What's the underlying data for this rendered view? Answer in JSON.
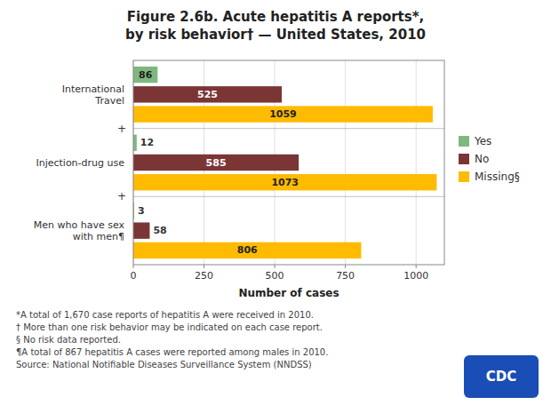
{
  "chart_data": {
    "type": "bar",
    "orientation": "horizontal",
    "title": "Figure 2.6b.  Acute hepatitis A reports*,",
    "subtitle": "by risk behavior† — United States, 2010",
    "categories": [
      "International\nTravel",
      "Injection-drug use",
      "Men who have sex\nwith men¶"
    ],
    "series": [
      {
        "name": "Yes",
        "color": "#7fb87f",
        "values": [
          86,
          12,
          3
        ]
      },
      {
        "name": "No",
        "color": "#7b3535",
        "values": [
          525,
          585,
          58
        ]
      },
      {
        "name": "Missing§",
        "color": "#ffbb00",
        "values": [
          1059,
          1073,
          806
        ]
      }
    ],
    "xlabel": "Number of cases",
    "xlim": [
      0,
      1100
    ],
    "xticks": [
      0,
      250,
      500,
      750,
      1000
    ],
    "grid": true,
    "legend": "right",
    "data_labels": true,
    "separator_label": "+",
    "annotations": [
      "*A total of 1,670 case reports of hepatitis A were received in 2010.",
      "† More than one risk behavior may be indicated on each case report.",
      "§ No risk data reported.",
      "¶A total of 867 hepatitis A cases were reported among males in 2010.",
      "Source: National Notifiable Diseases Surveillance System (NNDSS)"
    ],
    "logo_text": "CDC"
  }
}
